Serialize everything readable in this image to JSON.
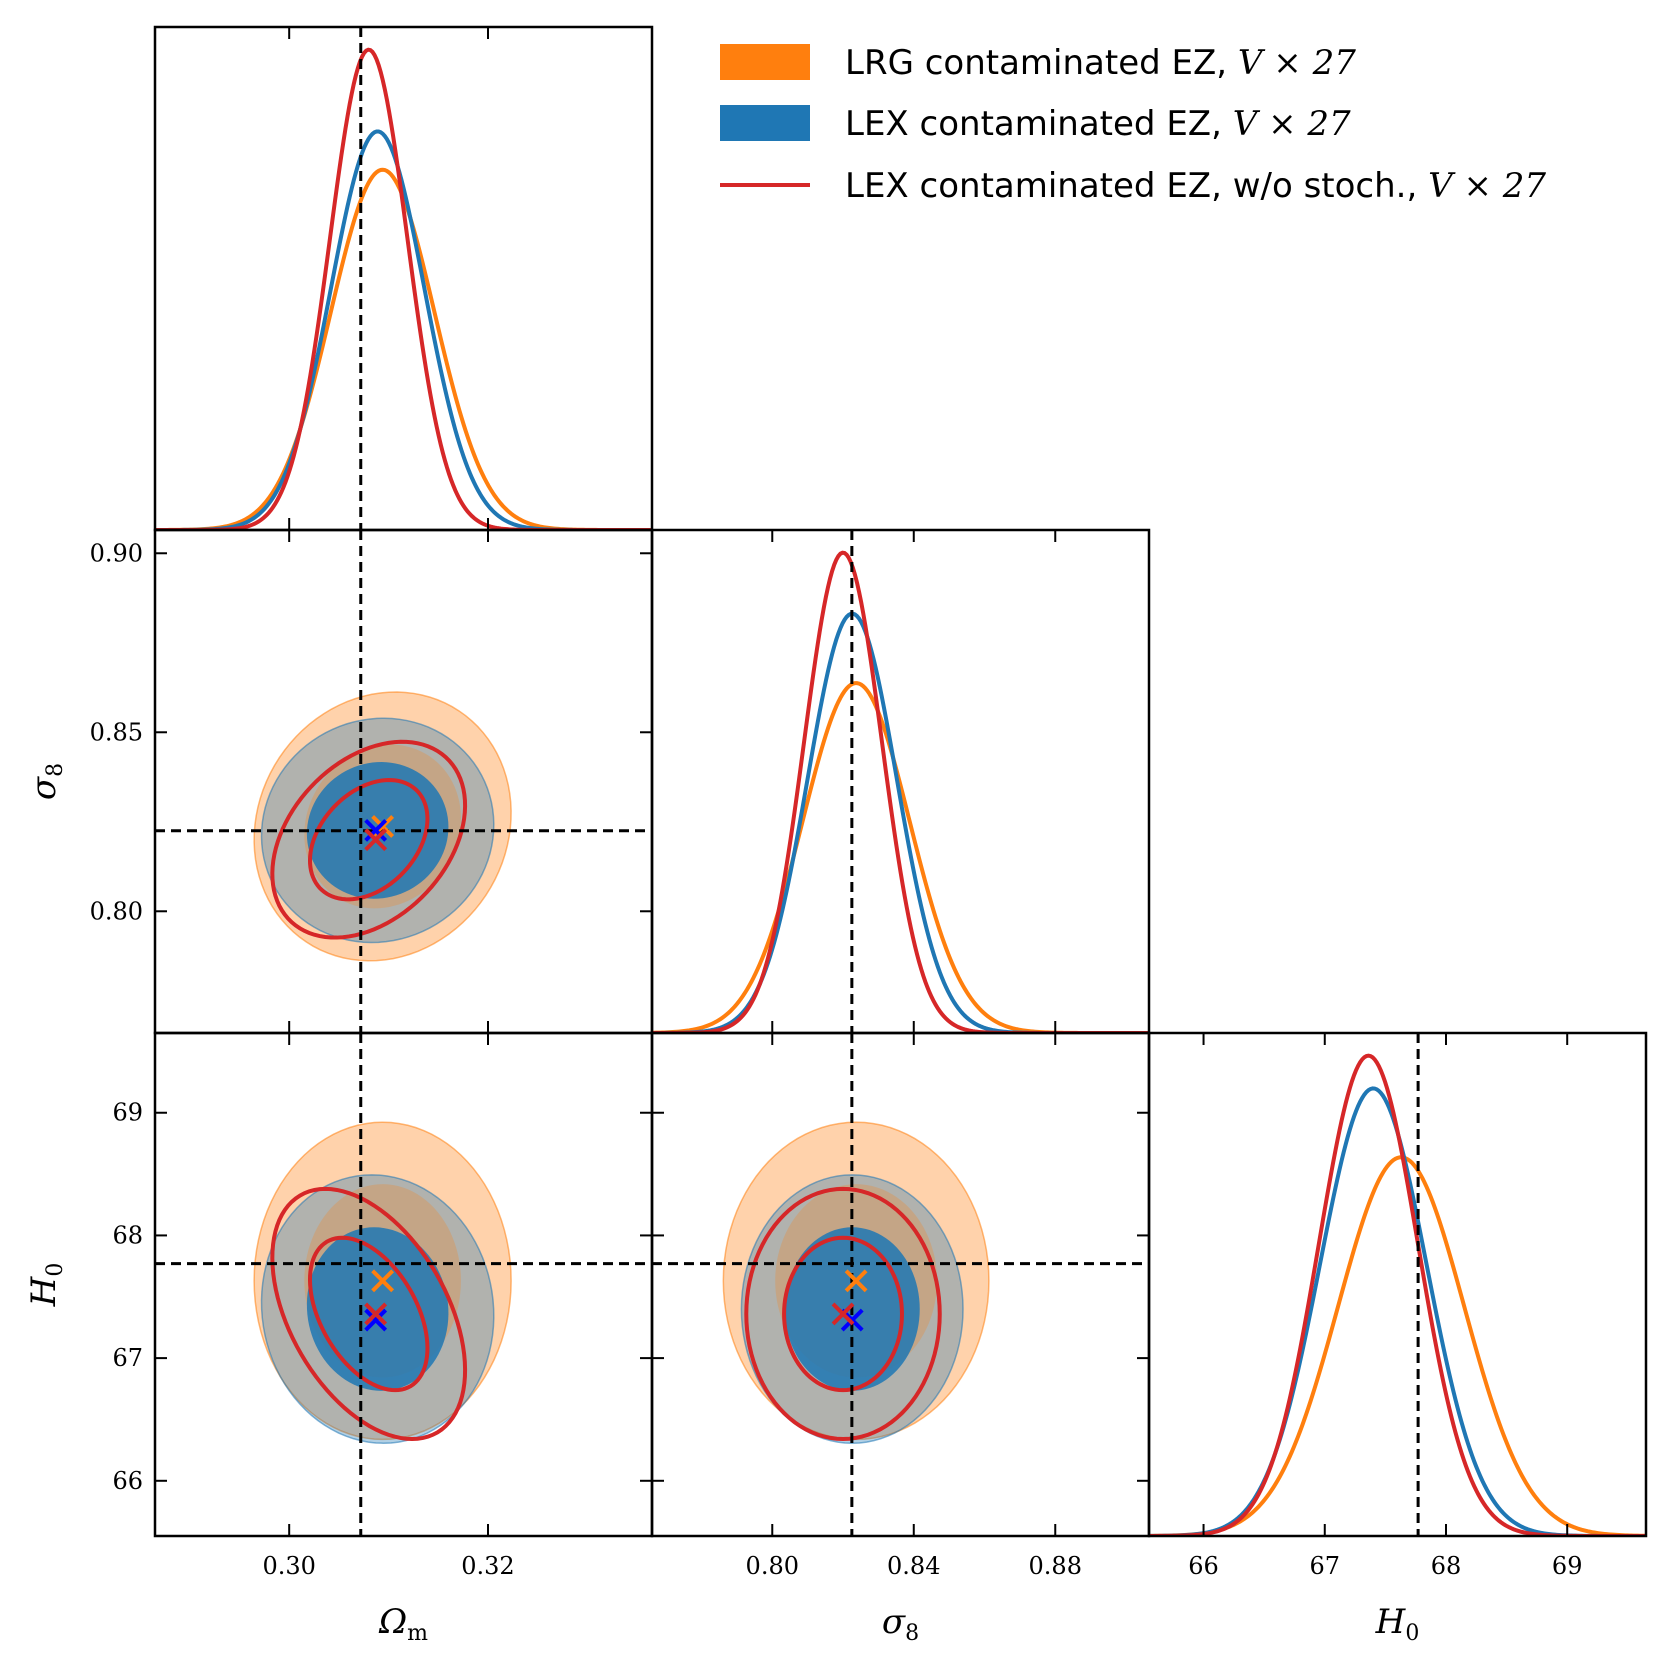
{
  "chart_data": {
    "type": "triangle-corner-plot",
    "parameters": [
      {
        "key": "Om",
        "label": "Ω",
        "label_sub": "m",
        "range": [
          0.2865,
          0.3365
        ],
        "ticks": [
          0.3,
          0.32
        ],
        "tick_labels": [
          "0.30",
          "0.32"
        ],
        "truth": 0.3072
      },
      {
        "key": "s8",
        "label": "σ",
        "label_sub": "8",
        "range": [
          0.766,
          0.9065
        ],
        "ticks": [
          0.8,
          0.85,
          0.9
        ],
        "tick_labels": [
          "0.80",
          "0.85",
          "0.90"
        ],
        "tick_labels_x": [
          "0.80",
          "0.84",
          "0.88"
        ],
        "ticks_x": [
          0.8,
          0.84,
          0.88
        ],
        "truth": 0.8225
      },
      {
        "key": "H0",
        "label": "H",
        "label_sub": "0",
        "range": [
          65.55,
          69.65
        ],
        "ticks": [
          66,
          67,
          68,
          69
        ],
        "tick_labels": [
          "66",
          "67",
          "68",
          "69"
        ],
        "truth": 67.77
      }
    ],
    "legend": {
      "placement": "top-right",
      "entries": [
        {
          "series": "lrg",
          "text": "LRG contaminated EZ, ",
          "math": "V × 27"
        },
        {
          "series": "lex",
          "text": "LEX contaminated EZ, ",
          "math": "V × 27"
        },
        {
          "series": "lexns",
          "text": "LEX contaminated EZ, w/o stoch., ",
          "math": "V × 27"
        }
      ]
    },
    "series": [
      {
        "id": "lrg",
        "style": "filled",
        "color": "#ff7f0e",
        "mean": {
          "Om": 0.3094,
          "s8": 0.8237,
          "H0": 67.63
        },
        "sd": {
          "Om": 0.0052,
          "s8": 0.0151,
          "H0": 0.52
        },
        "corr": {
          "Om_s8": 0.1,
          "Om_H0": 0.0,
          "s8_H0": 0.0
        }
      },
      {
        "id": "lex",
        "style": "filled",
        "color": "#1f77b4",
        "mean": {
          "Om": 0.3089,
          "s8": 0.8226,
          "H0": 67.4
        },
        "sd": {
          "Om": 0.0047,
          "s8": 0.0126,
          "H0": 0.44
        },
        "corr": {
          "Om_s8": 0.05,
          "Om_H0": -0.05,
          "s8_H0": 0.0
        }
      },
      {
        "id": "lexns",
        "style": "line",
        "color": "#d62728",
        "mean": {
          "Om": 0.308,
          "s8": 0.82,
          "H0": 67.36
        },
        "sd": {
          "Om": 0.0039,
          "s8": 0.011,
          "H0": 0.41
        },
        "corr": {
          "Om_s8": 0.35,
          "Om_H0": -0.45,
          "s8_H0": 0.0
        }
      }
    ],
    "best_fit_markers": [
      {
        "series": "lrg",
        "color": "#ff7f0e",
        "Om": 0.3094,
        "s8": 0.8237,
        "H0": 67.63
      },
      {
        "series": "lex",
        "color": "#0000ff",
        "Om": 0.3087,
        "s8": 0.8226,
        "H0": 67.31
      },
      {
        "series": "lexns",
        "color": "#d62728",
        "Om": 0.3087,
        "s8": 0.82,
        "H0": 67.36
      }
    ],
    "contour_levels": [
      "68%",
      "95%"
    ]
  }
}
